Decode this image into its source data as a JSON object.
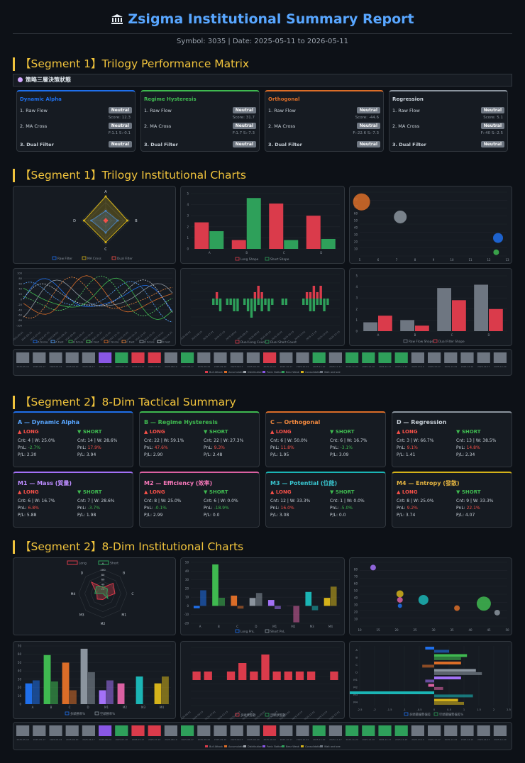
{
  "header": {
    "title": "Zsigma Institutional Summary Report",
    "subtitle": "Symbol: 3035 | Date: 2025-05-11 to 2026-05-11"
  },
  "sections": {
    "s1": "【Segment 1】Trilogy Performance Matrix",
    "s2": "【Segment 1】Trilogy Institutional Charts",
    "s3": "【Segment 2】8-Dim Tactical Summary",
    "s4": "【Segment 2】8-Dim Institutional Charts"
  },
  "strip_label": "策略三層決策狀態",
  "trilogy_cards": [
    {
      "name": "Dynamic Alpha",
      "color": "#1f6feb",
      "r1": "1. Raw Flow",
      "b1": "Neutral",
      "r2": "2. MA Cross",
      "b2": "Neutral",
      "note1": "Score: 12.3",
      "note2": "F:1.1 S:-0.1",
      "r3": "3. Dual Filter",
      "b3": "Neutral"
    },
    {
      "name": "Regime Hysteresis",
      "color": "#3fb950",
      "r1": "1. Raw Flow",
      "b1": "Neutral",
      "r2": "2. MA Cross",
      "b2": "Neutral",
      "note1": "Score: 31.7",
      "note2": "F:1.7 S:-7.3",
      "r3": "3. Dual Filter",
      "b3": "Neutral"
    },
    {
      "name": "Orthogonal",
      "color": "#db6d28",
      "r1": "1. Raw Flow",
      "b1": "Neutral",
      "r2": "2. MA Cross",
      "b2": "Neutral",
      "note1": "Score: -44.6",
      "note2": "F:-22.6 S:-7.3",
      "r3": "3. Dual Filter",
      "b3": "Neutral"
    },
    {
      "name": "Regression",
      "color": "#8b949e",
      "r1": "1. Raw Flow",
      "b1": "Neutral",
      "r2": "2. MA Cross",
      "b2": "Neutral",
      "note1": "Score: 5.1",
      "note2": "F:-40 S:-2.5",
      "r3": "3. Dual Filter",
      "b3": "Neutral"
    }
  ],
  "dim_cards": [
    {
      "title": "A — Dynamic Alpha",
      "color": "#1f6feb",
      "tcolor": "#58a6ff",
      "long": {
        "cnt": "Cnt: 4 | W: 25.0%",
        "pnl": "-2.7%",
        "pnl_class": "neg",
        "pf": "P/L: 2.30"
      },
      "short": {
        "cnt": "Cnt: 14 | W: 28.6%",
        "pnl": "17.9%",
        "pnl_class": "pos",
        "pf": "P/L: 3.94"
      }
    },
    {
      "title": "B — Regime Hysteresis",
      "color": "#3fb950",
      "tcolor": "#3fb950",
      "long": {
        "cnt": "Cnt: 22 | W: 59.1%",
        "pnl": "47.6%",
        "pnl_class": "pos",
        "pf": "P/L: 2.90"
      },
      "short": {
        "cnt": "Cnt: 22 | W: 27.3%",
        "pnl": "9.3%",
        "pnl_class": "pos",
        "pf": "P/L: 2.48"
      }
    },
    {
      "title": "C — Orthogonal",
      "color": "#db6d28",
      "tcolor": "#f0883e",
      "long": {
        "cnt": "Cnt: 6 | W: 50.0%",
        "pnl": "11.8%",
        "pnl_class": "pos",
        "pf": "P/L: 1.95"
      },
      "short": {
        "cnt": "Cnt: 6 | W: 16.7%",
        "pnl": "-3.1%",
        "pnl_class": "neg",
        "pf": "P/L: 3.09"
      }
    },
    {
      "title": "D — Regression",
      "color": "#8b949e",
      "tcolor": "#c9d1d9",
      "long": {
        "cnt": "Cnt: 3 | W: 66.7%",
        "pnl": "9.1%",
        "pnl_class": "pos",
        "pf": "P/L: 1.41"
      },
      "short": {
        "cnt": "Cnt: 13 | W: 38.5%",
        "pnl": "14.8%",
        "pnl_class": "pos",
        "pf": "P/L: 2.34"
      }
    },
    {
      "title": "M1 — Mass (質量)",
      "color": "#a371f7",
      "tcolor": "#bc8cff",
      "long": {
        "cnt": "Cnt: 6 | W: 16.7%",
        "pnl": "6.8%",
        "pnl_class": "pos",
        "pf": "P/L: 5.88"
      },
      "short": {
        "cnt": "Cnt: 7 | W: 28.6%",
        "pnl": "-3.7%",
        "pnl_class": "neg",
        "pf": "P/L: 1.98"
      }
    },
    {
      "title": "M2 — Efficiency (效率)",
      "color": "#db61a2",
      "tcolor": "#f778ba",
      "long": {
        "cnt": "Cnt: 8 | W: 25.0%",
        "pnl": "-0.1%",
        "pnl_class": "neg",
        "pf": "P/L: 2.99"
      },
      "short": {
        "cnt": "Cnt: 6 | W: 0.0%",
        "pnl": "-18.9%",
        "pnl_class": "neg",
        "pf": "P/L: 0.0"
      }
    },
    {
      "title": "M3 — Potential (位能)",
      "color": "#1bb5b5",
      "tcolor": "#39c5cf",
      "long": {
        "cnt": "Cnt: 12 | W: 33.3%",
        "pnl": "16.0%",
        "pnl_class": "pos",
        "pf": "P/L: 3.08"
      },
      "short": {
        "cnt": "Cnt: 1 | W: 0.0%",
        "pnl": "-5.0%",
        "pnl_class": "neg",
        "pf": "P/L: 0.0"
      }
    },
    {
      "title": "M4 — Entropy (發散)",
      "color": "#d4b21a",
      "tcolor": "#e3b341",
      "long": {
        "cnt": "Cnt: 8 | W: 25.0%",
        "pnl": "9.2%",
        "pnl_class": "pos",
        "pf": "P/L: 3.74"
      },
      "short": {
        "cnt": "Cnt: 9 | W: 33.3%",
        "pnl": "22.1%",
        "pnl_class": "pos",
        "pf": "P/L: 4.07"
      }
    }
  ],
  "dim_labels": {
    "long": "▲ LONG",
    "short": "▼ SHORT",
    "pnl_prefix": "PnL: "
  },
  "colors": {
    "long": "#da3b4b",
    "short": "#2ea05a",
    "grey": "#6e7681",
    "A": "#1f6feb",
    "B": "#3fb950",
    "C": "#db6d28",
    "D": "#8b949e",
    "M1": "#a371f7",
    "M2": "#db61a2",
    "M3": "#1bb5b5",
    "M4": "#d4b21a"
  },
  "chart_data": [
    {
      "type": "radar",
      "id": "c1",
      "axes": [
        "A",
        "B",
        "C",
        "D"
      ],
      "series": [
        {
          "name": "Raw Filter",
          "values": [
            0.4,
            0.5,
            0.5,
            0.6
          ],
          "color": "#1f6feb"
        },
        {
          "name": "MA Cross",
          "values": [
            1.0,
            0.9,
            0.9,
            0.9
          ],
          "color": "#d4b21a"
        },
        {
          "name": "Dual Filter",
          "values": [
            0.05,
            0.05,
            0.05,
            0.05
          ],
          "color": "#f85149"
        }
      ]
    },
    {
      "type": "bar",
      "id": "c2",
      "categories": [
        "A",
        "B",
        "C",
        "D"
      ],
      "series": [
        {
          "name": "Long Shape",
          "values": [
            2.4,
            0.8,
            4.1,
            3.0
          ],
          "color": "#da3b4b"
        },
        {
          "name": "Short Shape",
          "values": [
            1.6,
            4.6,
            0.8,
            0.9
          ],
          "color": "#2ea05a"
        }
      ]
    },
    {
      "type": "scatter",
      "id": "c3",
      "xticks": [
        "5",
        "6",
        "7",
        "8",
        "9",
        "10",
        "11",
        "12",
        "13"
      ],
      "yticks": [
        "10",
        "20",
        "30",
        "40",
        "50",
        "60",
        "70",
        "80"
      ],
      "points": [
        {
          "x": 5.1,
          "y": 72,
          "r": 12,
          "color": "#db6d28"
        },
        {
          "x": 7.2,
          "y": 52,
          "r": 9,
          "color": "#8b949e"
        },
        {
          "x": 12.5,
          "y": 24,
          "r": 7,
          "color": "#1f6feb"
        },
        {
          "x": 12.4,
          "y": 5,
          "r": 4,
          "color": "#3fb950"
        }
      ]
    },
    {
      "type": "line",
      "id": "c4",
      "yticks": [
        "-100",
        "-80",
        "-60",
        "-40",
        "-20",
        "0",
        "20",
        "40",
        "60",
        "80",
        "100"
      ],
      "legend": [
        "A Score",
        "A Fast",
        "B Score",
        "B Fast",
        "C Score",
        "C Fast",
        "D Score",
        "D Fast"
      ]
    },
    {
      "type": "bar",
      "id": "c5",
      "series": [
        {
          "name": "Dual Long Count",
          "color": "#da3b4b"
        },
        {
          "name": "Dual Short Count",
          "color": "#2ea05a"
        }
      ],
      "long_values": [
        0,
        0,
        0,
        0,
        0,
        0,
        0,
        1,
        0,
        0,
        0,
        0,
        0,
        0,
        0,
        0,
        0,
        0,
        1,
        2,
        1,
        0,
        0,
        0,
        0,
        0,
        0,
        0,
        0,
        0,
        0,
        0,
        0,
        1,
        1,
        2,
        1,
        2,
        0,
        0,
        0,
        0,
        0
      ],
      "short_values": [
        0,
        0,
        0,
        0,
        0,
        0,
        -1,
        -1,
        -2,
        0,
        -1,
        -1,
        -2,
        -2,
        0,
        -1,
        -2,
        -3,
        -2,
        -1,
        -2,
        -1,
        -2,
        -1,
        0,
        0,
        -1,
        -1,
        0,
        0,
        0,
        0,
        -1,
        -1,
        -2,
        -2,
        -1,
        -1,
        -2,
        -1,
        0,
        0,
        0
      ]
    },
    {
      "type": "bar",
      "id": "c6",
      "categories": [
        "A",
        "B",
        "C",
        "D"
      ],
      "series": [
        {
          "name": "Raw Flow Shape",
          "values": [
            0.8,
            1.0,
            3.9,
            4.2
          ],
          "color": "#6e7681"
        },
        {
          "name": "Dual Filter Shape",
          "values": [
            1.4,
            0.5,
            2.8,
            2.0
          ],
          "color": "#da3b4b"
        }
      ]
    },
    {
      "type": "heatmap",
      "id": "c7",
      "cells": [
        "#6e7681",
        "#6e7681",
        "#6e7681",
        "#6e7681",
        "#6e7681",
        "#8957e5",
        "#2ea05a",
        "#da3b4b",
        "#da3b4b",
        "#6e7681",
        "#2ea05a",
        "#6e7681",
        "#6e7681",
        "#6e7681",
        "#6e7681",
        "#da3b4b",
        "#6e7681",
        "#6e7681",
        "#2ea05a",
        "#6e7681",
        "#2ea05a",
        "#2ea05a",
        "#2ea05a",
        "#2ea05a",
        "#6e7681",
        "#6e7681",
        "#6e7681",
        "#6e7681",
        "#6e7681",
        "#6e7681"
      ],
      "legend": [
        {
          "name": "Bull Attack",
          "color": "#da3b4b"
        },
        {
          "name": "Accumulation",
          "color": "#db6d28"
        },
        {
          "name": "Distribution",
          "color": "#a0a6ad"
        },
        {
          "name": "Panic Bottom",
          "color": "#8957e5"
        },
        {
          "name": "Bear Weak",
          "color": "#2ea05a"
        },
        {
          "name": "Consolidation",
          "color": "#d4b21a"
        },
        {
          "name": "Wait and see",
          "color": "#6e7681"
        }
      ]
    },
    {
      "type": "radar",
      "id": "c8",
      "axes": [
        "A",
        "B",
        "C",
        "M1",
        "M2",
        "M3",
        "M4",
        "D"
      ],
      "legend": [
        "Long",
        "Short"
      ]
    },
    {
      "type": "bar",
      "id": "c9",
      "categories": [
        "A",
        "B",
        "C",
        "D",
        "M1",
        "M2",
        "M3",
        "M4"
      ],
      "series": [
        {
          "name": "Long PnL",
          "values": [
            -2.7,
            47.6,
            11.8,
            9.1,
            6.8,
            -0.1,
            16.0,
            9.2
          ],
          "color": "#1f6feb"
        },
        {
          "name": "Short PnL",
          "values": [
            17.9,
            9.3,
            -3.1,
            14.8,
            -3.7,
            -18.9,
            -5.0,
            22.1
          ],
          "color": "#8b949e"
        }
      ]
    },
    {
      "type": "scatter",
      "id": "c10",
      "points": [
        {
          "x": 12,
          "y": 78,
          "r": 4,
          "color": "#a371f7"
        },
        {
          "x": 20,
          "y": 43,
          "r": 5,
          "color": "#d4b21a"
        },
        {
          "x": 20,
          "y": 35,
          "r": 4,
          "color": "#db61a2"
        },
        {
          "x": 20,
          "y": 27,
          "r": 3,
          "color": "#1f6feb"
        },
        {
          "x": 27,
          "y": 35,
          "r": 7,
          "color": "#1bb5b5"
        },
        {
          "x": 37,
          "y": 24,
          "r": 4,
          "color": "#db6d28"
        },
        {
          "x": 45,
          "y": 30,
          "r": 10,
          "color": "#3fb950"
        },
        {
          "x": 49,
          "y": 18,
          "r": 4,
          "color": "#8b949e"
        }
      ]
    },
    {
      "type": "bar",
      "id": "c11",
      "categories": [
        "A",
        "B",
        "C",
        "D",
        "M1",
        "M2",
        "M3",
        "M4"
      ],
      "series": [
        {
          "name": "多頭勝率%",
          "values": [
            25,
            59.1,
            50,
            66.7,
            16.7,
            25,
            33.3,
            25
          ]
        },
        {
          "name": "空頭勝率%",
          "values": [
            28.6,
            27.3,
            16.7,
            38.5,
            28.6,
            0,
            0,
            33.3
          ]
        }
      ]
    },
    {
      "type": "bar",
      "id": "c12",
      "series": [
        {
          "name": "多頭狀態數",
          "color": "#da3b4b"
        },
        {
          "name": "空頭狀態數",
          "color": "#2ea05a"
        }
      ],
      "long_values": [
        1,
        1,
        0,
        1,
        2,
        1,
        3,
        1,
        1,
        1,
        1,
        0,
        1
      ],
      "short_values": [
        1,
        1,
        1,
        2,
        1,
        2,
        1,
        1,
        1,
        1,
        1,
        1,
        1
      ]
    },
    {
      "type": "bar",
      "id": "c13",
      "categories": [
        "A",
        "B",
        "C",
        "D",
        "M1",
        "M2",
        "M3",
        "M4"
      ],
      "series": [
        {
          "name": "多頭最優勢偏差",
          "color": "#1f6feb"
        },
        {
          "name": "空頭最優勢偏差%",
          "color": "#2ea05a"
        }
      ]
    }
  ]
}
